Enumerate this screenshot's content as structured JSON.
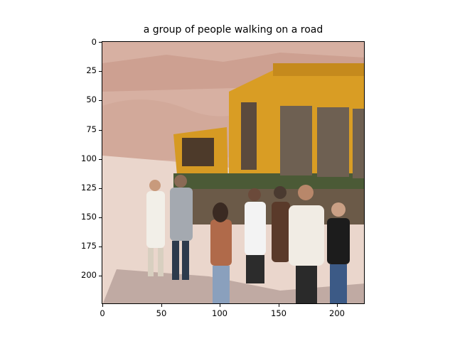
{
  "title": "a group of people walking on a road",
  "image": {
    "description_colors": {
      "sky_cliff": "#d9b3a3",
      "ground": "#e9d3c8",
      "bus_body": "#d89b22",
      "bus_stripe": "#4b5a36",
      "shadow": "#5a4a4a"
    }
  },
  "axes": {
    "x_ticks": [
      "0",
      "50",
      "100",
      "150",
      "200"
    ],
    "y_ticks": [
      "0",
      "25",
      "50",
      "75",
      "100",
      "125",
      "150",
      "175",
      "200"
    ]
  }
}
